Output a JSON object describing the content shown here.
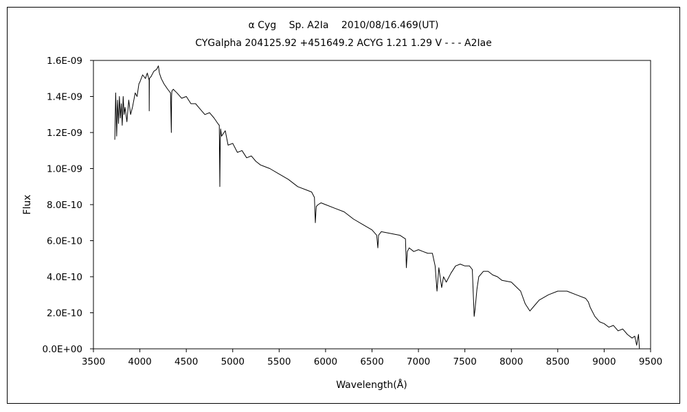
{
  "chart_data": {
    "type": "line",
    "title": "α Cyg　 Sp. A2Ia　 2010/08/16.469(UT)",
    "subtitle": "CYGalpha 204125.92 +451649.2 ACYG 1.21 1.29 V - - - A2Iae",
    "xlabel": "Wavelength(Å)",
    "ylabel": "Flux",
    "xlim": [
      3500,
      9500
    ],
    "ylim": [
      0,
      1.6e-09
    ],
    "x_tick_labels": [
      "3500",
      "4000",
      "4500",
      "5000",
      "5500",
      "6000",
      "6500",
      "7000",
      "7500",
      "8000",
      "8500",
      "9000",
      "9500"
    ],
    "y_tick_labels": [
      "0.0E+00",
      "2.0E-10",
      "4.0E-10",
      "6.0E-10",
      "8.0E-10",
      "1.0E-09",
      "1.2E-09",
      "1.4E-09",
      "1.6E-09"
    ],
    "grid": false,
    "legend": "none",
    "series": [
      {
        "color": "#000000",
        "x": [
          3730,
          3740,
          3750,
          3760,
          3770,
          3780,
          3790,
          3800,
          3810,
          3820,
          3830,
          3840,
          3860,
          3880,
          3900,
          3920,
          3950,
          3970,
          3990,
          4000,
          4030,
          4060,
          4080,
          4100,
          4101,
          4103,
          4120,
          4150,
          4180,
          4200,
          4210,
          4230,
          4260,
          4300,
          4330,
          4339,
          4342,
          4345,
          4360,
          4400,
          4450,
          4500,
          4550,
          4600,
          4650,
          4700,
          4750,
          4800,
          4840,
          4855,
          4861,
          4866,
          4870,
          4880,
          4920,
          4950,
          5000,
          5050,
          5100,
          5150,
          5200,
          5250,
          5300,
          5400,
          5500,
          5600,
          5700,
          5800,
          5850,
          5880,
          5890,
          5896,
          5900,
          5920,
          5950,
          6000,
          6100,
          6200,
          6300,
          6400,
          6500,
          6550,
          6563,
          6570,
          6600,
          6700,
          6800,
          6860,
          6870,
          6880,
          6900,
          6950,
          7000,
          7050,
          7100,
          7150,
          7180,
          7200,
          7220,
          7250,
          7270,
          7300,
          7350,
          7400,
          7450,
          7500,
          7550,
          7580,
          7600,
          7610,
          7630,
          7650,
          7700,
          7750,
          7800,
          7850,
          7900,
          8000,
          8100,
          8150,
          8200,
          8250,
          8300,
          8400,
          8500,
          8600,
          8700,
          8800,
          8830,
          8850,
          8900,
          8950,
          9000,
          9050,
          9100,
          9150,
          9200,
          9250,
          9300,
          9330,
          9350,
          9370,
          9380
        ],
        "y": [
          1.16e-09,
          1.42e-09,
          1.18e-09,
          1.38e-09,
          1.25e-09,
          1.4e-09,
          1.28e-09,
          1.36e-09,
          1.24e-09,
          1.4e-09,
          1.3e-09,
          1.34e-09,
          1.26e-09,
          1.38e-09,
          1.3e-09,
          1.34e-09,
          1.42e-09,
          1.4e-09,
          1.47e-09,
          1.48e-09,
          1.52e-09,
          1.5e-09,
          1.53e-09,
          1.49e-09,
          1.32e-09,
          1.5e-09,
          1.51e-09,
          1.54e-09,
          1.55e-09,
          1.57e-09,
          1.53e-09,
          1.5e-09,
          1.47e-09,
          1.44e-09,
          1.42e-09,
          1.2e-09,
          1.4e-09,
          1.43e-09,
          1.44e-09,
          1.42e-09,
          1.39e-09,
          1.4e-09,
          1.36e-09,
          1.36e-09,
          1.33e-09,
          1.3e-09,
          1.31e-09,
          1.28e-09,
          1.25e-09,
          1.24e-09,
          9e-10,
          1.15e-09,
          1.22e-09,
          1.18e-09,
          1.21e-09,
          1.13e-09,
          1.14e-09,
          1.09e-09,
          1.1e-09,
          1.06e-09,
          1.07e-09,
          1.04e-09,
          1.02e-09,
          1e-09,
          9.7e-10,
          9.4e-10,
          9e-10,
          8.8e-10,
          8.7e-10,
          8.4e-10,
          7e-10,
          7.6e-10,
          7.9e-10,
          8e-10,
          8.1e-10,
          8e-10,
          7.8e-10,
          7.6e-10,
          7.2e-10,
          6.9e-10,
          6.6e-10,
          6.3e-10,
          5.6e-10,
          6.3e-10,
          6.5e-10,
          6.4e-10,
          6.3e-10,
          6.1e-10,
          4.5e-10,
          5.4e-10,
          5.6e-10,
          5.4e-10,
          5.5e-10,
          5.4e-10,
          5.3e-10,
          5.3e-10,
          4.6e-10,
          3.2e-10,
          4.5e-10,
          3.4e-10,
          4e-10,
          3.7e-10,
          4.2e-10,
          4.6e-10,
          4.7e-10,
          4.6e-10,
          4.6e-10,
          4.4e-10,
          1.8e-10,
          2.2e-10,
          3.3e-10,
          4e-10,
          4.3e-10,
          4.3e-10,
          4.1e-10,
          4e-10,
          3.8e-10,
          3.7e-10,
          3.2e-10,
          2.5e-10,
          2.1e-10,
          2.4e-10,
          2.7e-10,
          3e-10,
          3.2e-10,
          3.2e-10,
          3e-10,
          2.8e-10,
          2.6e-10,
          2.3e-10,
          1.8e-10,
          1.5e-10,
          1.4e-10,
          1.2e-10,
          1.3e-10,
          1e-10,
          1.1e-10,
          8e-11,
          6e-11,
          7e-11,
          2e-11,
          8e-11,
          0.0
        ]
      }
    ]
  }
}
